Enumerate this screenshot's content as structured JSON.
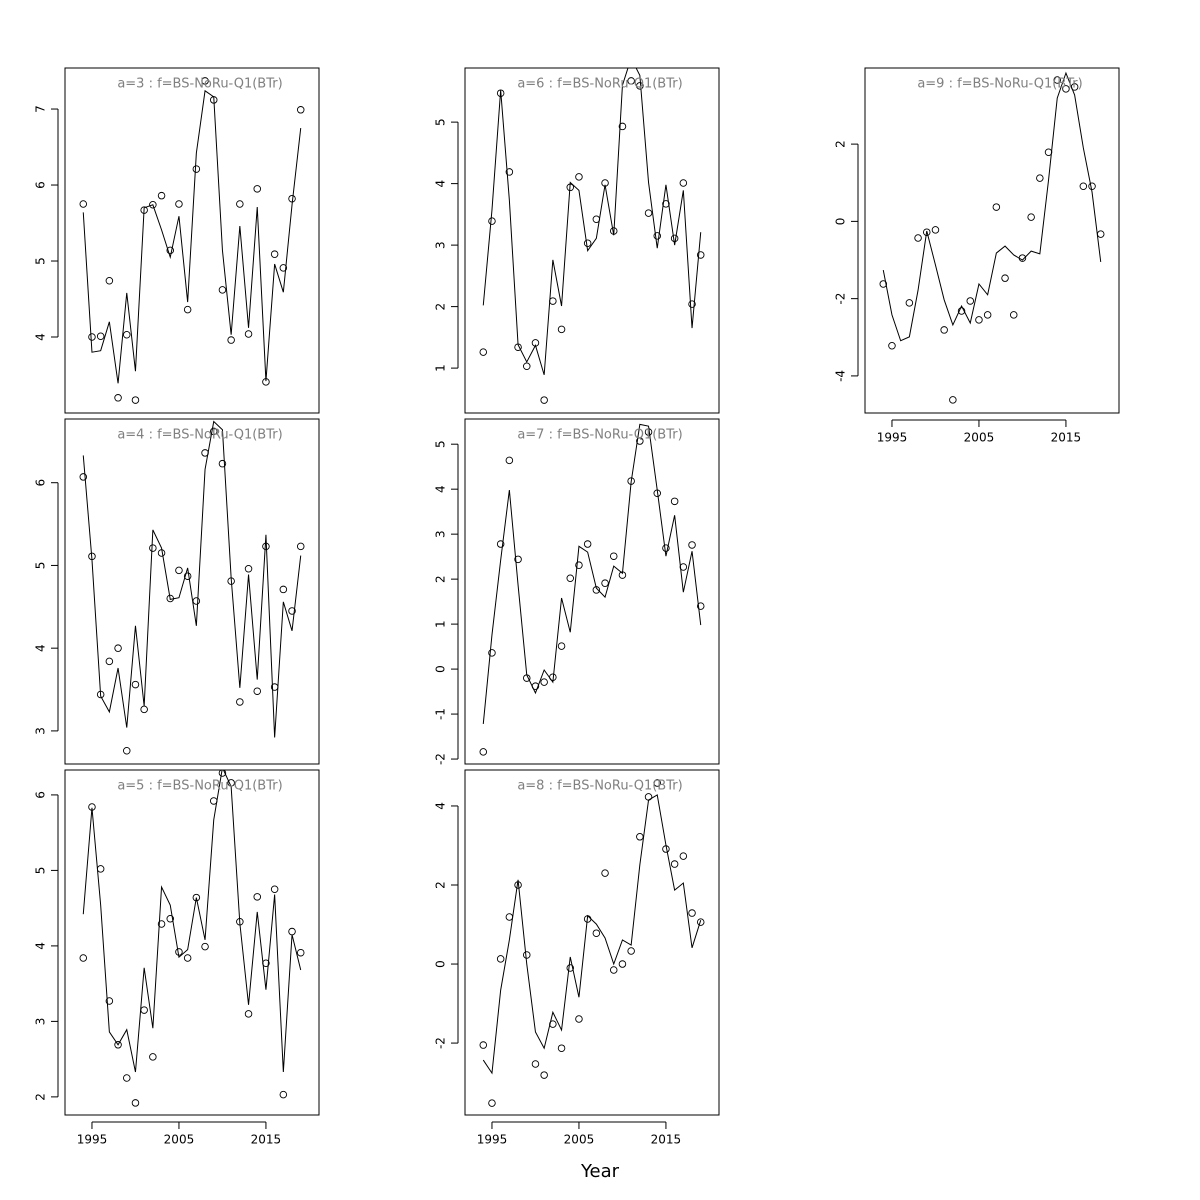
{
  "x_label": "Year",
  "chart_data": [
    {
      "type": "line",
      "title": "a=3  :  f=BS-NoRu-Q1(BTr)",
      "x": [
        1994,
        1995,
        1996,
        1997,
        1998,
        1999,
        2000,
        2001,
        2002,
        2003,
        2004,
        2005,
        2006,
        2007,
        2008,
        2009,
        2010,
        2011,
        2012,
        2013,
        2014,
        2015,
        2016,
        2017,
        2018,
        2019
      ],
      "series": [
        {
          "style": "points",
          "values": [
            5.75,
            4.0,
            4.01,
            4.74,
            3.2,
            4.03,
            3.17,
            5.67,
            5.74,
            5.86,
            5.14,
            5.75,
            4.36,
            6.21,
            7.37,
            7.12,
            4.62,
            3.96,
            5.75,
            4.04,
            5.95,
            3.41,
            5.09,
            4.91,
            5.82,
            6.99
          ]
        },
        {
          "style": "line",
          "values": [
            5.64,
            3.8,
            3.82,
            4.2,
            3.39,
            4.58,
            3.55,
            5.7,
            5.74,
            5.41,
            5.05,
            5.59,
            4.46,
            6.42,
            7.24,
            7.16,
            5.14,
            4.03,
            5.46,
            4.12,
            5.71,
            3.42,
            4.96,
            4.59,
            5.74,
            6.75
          ]
        }
      ],
      "xlim": [
        1991.9,
        2021.1
      ],
      "ylim": [
        3.0,
        7.54
      ],
      "yticks": [
        4,
        5,
        6,
        7
      ],
      "show_x_axis": false
    },
    {
      "type": "line",
      "title": "a=4  :  f=BS-NoRu-Q1(BTr)",
      "x": [
        1994,
        1995,
        1996,
        1997,
        1998,
        1999,
        2000,
        2001,
        2002,
        2003,
        2004,
        2005,
        2006,
        2007,
        2008,
        2009,
        2010,
        2011,
        2012,
        2013,
        2014,
        2015,
        2016,
        2017,
        2018,
        2019
      ],
      "series": [
        {
          "style": "points",
          "values": [
            6.07,
            5.11,
            3.44,
            3.84,
            4.0,
            2.76,
            3.56,
            3.26,
            5.21,
            5.15,
            4.6,
            4.94,
            4.87,
            4.57,
            6.36,
            6.62,
            6.23,
            4.81,
            3.35,
            4.96,
            3.48,
            5.23,
            3.53,
            4.71,
            4.45,
            5.23
          ]
        },
        {
          "style": "line",
          "values": [
            6.33,
            5.07,
            3.42,
            3.23,
            3.76,
            3.04,
            4.27,
            3.3,
            5.43,
            5.21,
            4.59,
            4.61,
            4.97,
            4.27,
            6.16,
            6.74,
            6.64,
            4.85,
            3.52,
            4.89,
            3.62,
            5.37,
            2.92,
            4.56,
            4.21,
            5.12
          ]
        }
      ],
      "xlim": [
        1991.9,
        2021.1
      ],
      "ylim": [
        2.6,
        6.77
      ],
      "yticks": [
        3,
        4,
        5,
        6
      ],
      "show_x_axis": false
    },
    {
      "type": "line",
      "title": "a=5  :  f=BS-NoRu-Q1(BTr)",
      "x": [
        1994,
        1995,
        1996,
        1997,
        1998,
        1999,
        2000,
        2001,
        2002,
        2003,
        2004,
        2005,
        2006,
        2007,
        2008,
        2009,
        2010,
        2011,
        2012,
        2013,
        2014,
        2015,
        2016,
        2017,
        2018,
        2019
      ],
      "series": [
        {
          "style": "points",
          "values": [
            3.84,
            5.84,
            5.02,
            3.27,
            2.69,
            2.25,
            1.92,
            3.15,
            2.53,
            4.29,
            4.36,
            3.92,
            3.84,
            4.64,
            3.99,
            5.92,
            6.29,
            6.16,
            4.32,
            3.1,
            4.65,
            3.77,
            4.75,
            2.03,
            4.19,
            3.91
          ]
        },
        {
          "style": "line",
          "values": [
            4.42,
            5.83,
            4.54,
            2.86,
            2.69,
            2.89,
            2.33,
            3.71,
            2.91,
            4.78,
            4.54,
            3.85,
            3.95,
            4.64,
            4.08,
            5.67,
            6.36,
            6.11,
            4.3,
            3.22,
            4.45,
            3.42,
            4.68,
            2.33,
            4.15,
            3.68
          ]
        }
      ],
      "xlim": [
        1991.9,
        2021.1
      ],
      "ylim": [
        1.76,
        6.33
      ],
      "yticks": [
        2,
        3,
        4,
        5,
        6
      ],
      "xticks": [
        1995,
        2005,
        2015
      ],
      "show_x_axis": true
    },
    {
      "type": "line",
      "title": "a=6  :  f=BS-NoRu-Q1(BTr)",
      "x": [
        1994,
        1995,
        1996,
        1997,
        1998,
        1999,
        2000,
        2001,
        2002,
        2003,
        2004,
        2005,
        2006,
        2007,
        2008,
        2009,
        2010,
        2011,
        2012,
        2013,
        2014,
        2015,
        2016,
        2017,
        2018,
        2019
      ],
      "series": [
        {
          "style": "points",
          "values": [
            1.26,
            3.39,
            5.47,
            4.19,
            1.34,
            1.03,
            1.41,
            0.48,
            2.09,
            1.63,
            3.94,
            4.11,
            3.03,
            3.42,
            4.01,
            3.23,
            4.93,
            5.67,
            5.59,
            3.52,
            3.15,
            3.67,
            3.11,
            4.01,
            2.04,
            2.84
          ]
        },
        {
          "style": "line",
          "values": [
            2.02,
            3.57,
            5.52,
            3.73,
            1.38,
            1.1,
            1.37,
            0.89,
            2.76,
            2.01,
            4.02,
            3.89,
            2.91,
            3.11,
            3.98,
            3.16,
            5.6,
            6.04,
            5.76,
            4.02,
            2.95,
            3.98,
            3.0,
            3.89,
            1.65,
            3.21
          ]
        }
      ],
      "xlim": [
        1991.9,
        2021.1
      ],
      "ylim": [
        0.27,
        5.88
      ],
      "yticks": [
        1,
        2,
        3,
        4,
        5
      ],
      "show_x_axis": false
    },
    {
      "type": "line",
      "title": "a=7  :  f=BS-NoRu-Q1(BTr)",
      "x": [
        1994,
        1995,
        1996,
        1997,
        1998,
        1999,
        2000,
        2001,
        2002,
        2003,
        2004,
        2005,
        2006,
        2007,
        2008,
        2009,
        2010,
        2011,
        2012,
        2013,
        2014,
        2015,
        2016,
        2017,
        2018,
        2019
      ],
      "series": [
        {
          "style": "points",
          "values": [
            -1.84,
            0.36,
            2.78,
            4.64,
            2.44,
            -0.2,
            -0.38,
            -0.29,
            -0.18,
            0.51,
            2.02,
            2.31,
            2.78,
            1.76,
            1.91,
            2.51,
            2.09,
            4.18,
            5.07,
            5.27,
            3.91,
            2.69,
            3.73,
            2.27,
            2.76,
            1.4
          ]
        },
        {
          "style": "line",
          "values": [
            -1.22,
            0.76,
            2.42,
            3.98,
            1.87,
            -0.13,
            -0.53,
            -0.02,
            -0.29,
            1.58,
            0.82,
            2.73,
            2.6,
            1.8,
            1.6,
            2.29,
            2.13,
            4.16,
            5.44,
            5.4,
            3.98,
            2.51,
            3.42,
            1.71,
            2.62,
            0.98
          ]
        }
      ],
      "xlim": [
        1991.9,
        2021.1
      ],
      "ylim": [
        -2.11,
        5.56
      ],
      "yticks": [
        -2,
        -1,
        0,
        1,
        2,
        3,
        4,
        5
      ],
      "show_x_axis": false
    },
    {
      "type": "line",
      "title": "a=8  :  f=BS-NoRu-Q1(BTr)",
      "x": [
        1994,
        1995,
        1996,
        1997,
        1998,
        1999,
        2000,
        2001,
        2002,
        2003,
        2004,
        2005,
        2006,
        2007,
        2008,
        2009,
        2010,
        2011,
        2012,
        2013,
        2014,
        2015,
        2016,
        2017,
        2018,
        2019
      ],
      "series": [
        {
          "style": "points",
          "values": [
            -2.05,
            -3.52,
            0.13,
            1.19,
            2.0,
            0.23,
            -2.53,
            -2.81,
            -1.52,
            -2.13,
            -0.1,
            -1.39,
            1.14,
            0.78,
            2.3,
            -0.15,
            0,
            0.33,
            3.22,
            4.23,
            4.58,
            2.91,
            2.53,
            2.73,
            1.29,
            1.06
          ]
        },
        {
          "style": "line",
          "values": [
            -2.43,
            -2.76,
            -0.66,
            0.61,
            2.13,
            0,
            -1.72,
            -2.13,
            -1.22,
            -1.67,
            0.18,
            -0.84,
            1.22,
            1.01,
            0.66,
            0,
            0.61,
            0.48,
            2.51,
            4.15,
            4.28,
            3.01,
            1.87,
            2.05,
            0.41,
            1.11
          ]
        }
      ],
      "xlim": [
        1991.9,
        2021.1
      ],
      "ylim": [
        -3.82,
        4.91
      ],
      "yticks": [
        -2,
        0,
        2,
        4
      ],
      "xticks": [
        1995,
        2005,
        2015
      ],
      "show_x_axis": true
    },
    {
      "type": "line",
      "title": "a=9  :  f=BS-NoRu-Q1(BTr)",
      "x": [
        1994,
        1995,
        1996,
        1997,
        1998,
        1999,
        2000,
        2001,
        2002,
        2003,
        2004,
        2005,
        2006,
        2007,
        2008,
        2009,
        2010,
        2011,
        2012,
        2013,
        2014,
        2015,
        2016,
        2017,
        2018,
        2019
      ],
      "series": [
        {
          "style": "points",
          "values": [
            -1.62,
            -3.22,
            null,
            -2.11,
            -0.43,
            -0.28,
            -0.22,
            -2.81,
            -4.62,
            -2.32,
            -2.06,
            -2.55,
            -2.42,
            0.37,
            -1.47,
            -2.42,
            -0.95,
            0.11,
            1.12,
            1.79,
            3.66,
            3.43,
            3.48,
            0.91,
            0.91,
            -0.33
          ]
        },
        {
          "style": "line",
          "values": [
            -1.26,
            -2.42,
            -3.09,
            -2.99,
            -1.78,
            -0.25,
            -1.13,
            -2.03,
            -2.68,
            -2.19,
            -2.63,
            -1.62,
            -1.9,
            -0.82,
            -0.64,
            -0.87,
            -1.0,
            -0.77,
            -0.84,
            1.07,
            3.19,
            3.84,
            3.27,
            1.9,
            0.76,
            -1.05
          ]
        }
      ],
      "xlim": [
        1991.9,
        2021.1
      ],
      "ylim": [
        -4.96,
        3.97
      ],
      "yticks": [
        -4,
        -2,
        0,
        2
      ],
      "xticks": [
        1995,
        2005,
        2015
      ],
      "show_x_axis": true
    }
  ]
}
